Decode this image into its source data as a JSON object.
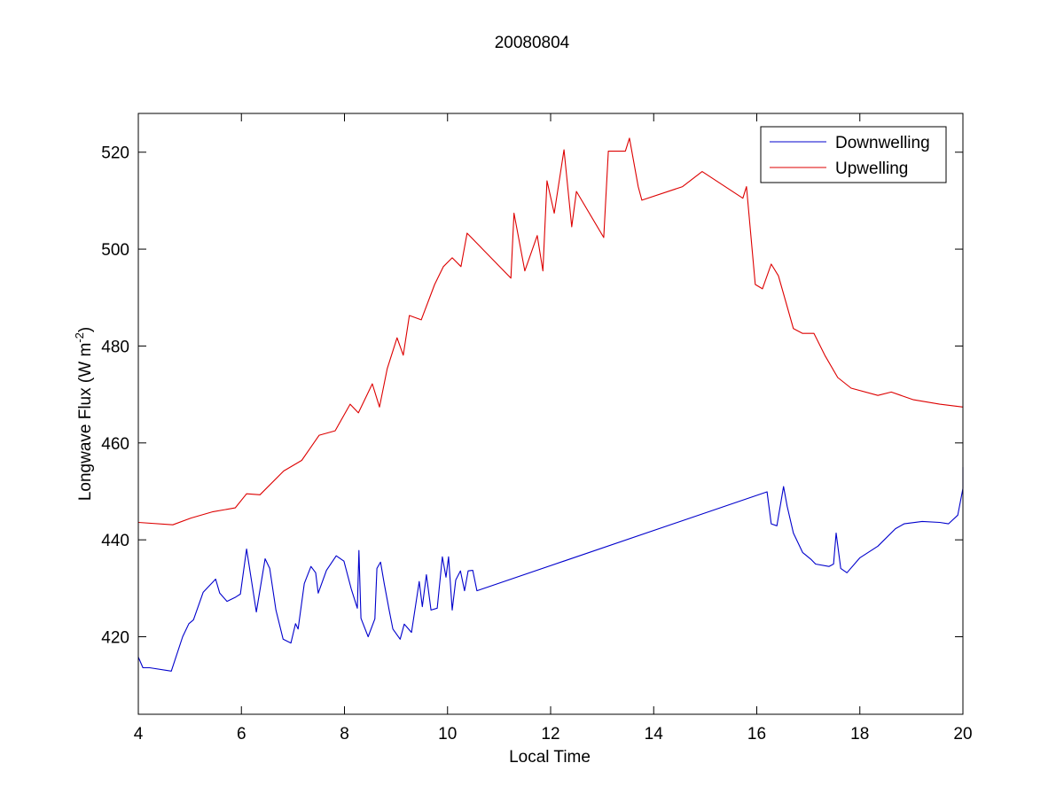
{
  "chart_data": {
    "type": "line",
    "title": "20080804",
    "xlabel": "Local Time",
    "ylabel": "Longwave Flux (W m",
    "ylabel_sup": "-2",
    "ylabel_end": ")",
    "xlim": [
      4,
      20
    ],
    "ylim": [
      404,
      528
    ],
    "xticks": [
      4,
      6,
      8,
      10,
      12,
      14,
      16,
      18,
      20
    ],
    "yticks": [
      420,
      440,
      460,
      480,
      500,
      520
    ],
    "grid": false,
    "legend_position": "top-right",
    "series": [
      {
        "name": "Downwelling",
        "color": "#0000cc",
        "x": [
          4.0,
          4.09,
          4.22,
          4.64,
          4.86,
          4.98,
          5.07,
          5.26,
          5.5,
          5.58,
          5.72,
          5.89,
          5.98,
          6.1,
          6.29,
          6.46,
          6.55,
          6.67,
          6.81,
          6.96,
          7.05,
          7.1,
          7.22,
          7.35,
          7.44,
          7.49,
          7.65,
          7.84,
          7.99,
          8.13,
          8.25,
          8.28,
          8.32,
          8.46,
          8.59,
          8.63,
          8.7,
          8.77,
          8.87,
          8.94,
          9.08,
          9.16,
          9.3,
          9.45,
          9.51,
          9.59,
          9.68,
          9.8,
          9.9,
          9.97,
          10.02,
          10.09,
          10.16,
          10.25,
          10.33,
          10.4,
          10.49,
          10.57,
          16.2,
          16.28,
          16.39,
          16.52,
          16.59,
          16.71,
          16.89,
          17.06,
          17.14,
          17.4,
          17.49,
          17.54,
          17.63,
          17.75,
          18.0,
          18.35,
          18.69,
          18.86,
          19.21,
          19.55,
          19.72,
          19.9,
          20.0,
          20.0
        ],
        "y": [
          415.8,
          413.6,
          413.6,
          412.9,
          420.0,
          422.7,
          423.5,
          429.2,
          431.9,
          429.0,
          427.3,
          428.2,
          428.8,
          438.1,
          425.1,
          436.1,
          434.1,
          425.5,
          419.5,
          418.7,
          422.7,
          421.6,
          431.0,
          434.5,
          433.2,
          429.0,
          433.7,
          436.7,
          435.6,
          429.9,
          425.9,
          437.8,
          423.8,
          420.0,
          423.7,
          434.1,
          435.4,
          431.0,
          425.3,
          421.6,
          419.5,
          422.6,
          420.9,
          431.4,
          426.2,
          432.8,
          425.5,
          425.9,
          436.5,
          432.3,
          436.5,
          425.5,
          431.7,
          433.6,
          429.5,
          433.6,
          433.7,
          429.5,
          449.9,
          443.3,
          442.9,
          451.0,
          446.9,
          441.4,
          437.4,
          435.9,
          435.0,
          434.5,
          435.0,
          441.4,
          434.1,
          433.2,
          436.3,
          438.7,
          442.3,
          443.3,
          443.8,
          443.6,
          443.3,
          445.1,
          450.6,
          455.0
        ]
      },
      {
        "name": "Upwelling",
        "color": "#dd0000",
        "x": [
          4.0,
          4.67,
          5.02,
          5.45,
          5.88,
          6.1,
          6.36,
          6.82,
          7.17,
          7.51,
          7.82,
          8.11,
          8.27,
          8.54,
          8.68,
          8.83,
          9.02,
          9.14,
          9.26,
          9.49,
          9.75,
          9.92,
          10.09,
          10.26,
          10.38,
          11.23,
          11.29,
          11.5,
          11.74,
          11.85,
          11.93,
          12.07,
          12.26,
          12.41,
          12.5,
          13.03,
          13.12,
          13.45,
          13.53,
          13.7,
          13.77,
          14.56,
          14.94,
          15.73,
          15.8,
          15.97,
          16.11,
          16.28,
          16.42,
          16.54,
          16.71,
          16.89,
          17.11,
          17.32,
          17.57,
          17.83,
          18.35,
          18.61,
          19.04,
          19.55,
          20.0
        ],
        "y": [
          443.6,
          443.1,
          444.5,
          445.8,
          446.6,
          449.5,
          449.3,
          454.2,
          456.4,
          461.6,
          462.5,
          468.0,
          466.2,
          472.2,
          467.4,
          475.3,
          481.7,
          478.1,
          486.3,
          485.4,
          492.7,
          496.4,
          498.2,
          496.4,
          503.3,
          494.0,
          507.4,
          495.5,
          502.8,
          495.5,
          514.1,
          507.4,
          520.5,
          504.6,
          511.9,
          502.4,
          520.2,
          520.2,
          522.9,
          512.9,
          510.1,
          512.9,
          516.0,
          510.5,
          512.9,
          492.7,
          491.8,
          496.9,
          494.5,
          490.0,
          483.6,
          482.6,
          482.6,
          478.1,
          473.5,
          471.3,
          469.8,
          470.5,
          468.9,
          468.0,
          467.4
        ]
      }
    ]
  }
}
